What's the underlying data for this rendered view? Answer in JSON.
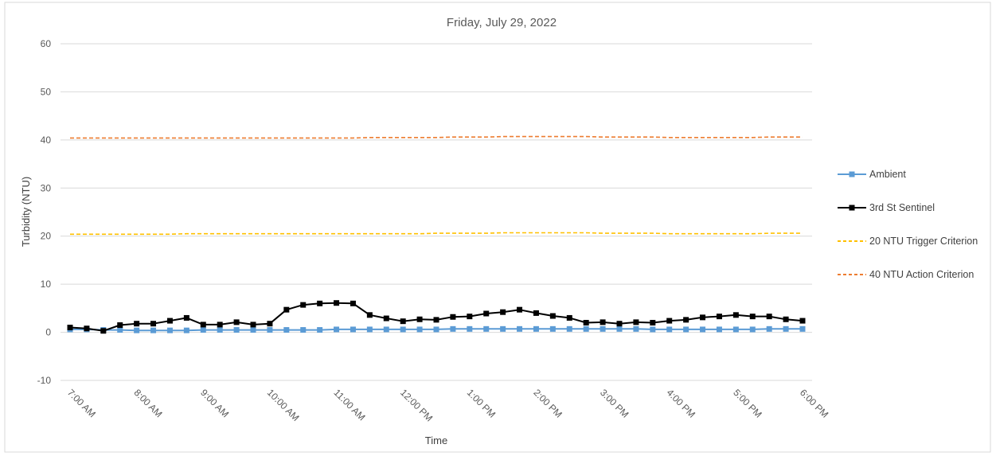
{
  "chart_data": {
    "type": "line",
    "title": "Friday, July 29, 2022",
    "xlabel": "Time",
    "ylabel": "Turbidity (NTU)",
    "ylim": [
      -10,
      60
    ],
    "yticks": [
      -10,
      0,
      10,
      20,
      30,
      40,
      50,
      60
    ],
    "grid": "horizontal",
    "legend_position": "right",
    "x_tick_labels": [
      "7:00 AM",
      "8:00 AM",
      "9:00 AM",
      "10:00 AM",
      "11:00 AM",
      "12:00 PM",
      "1:00 PM",
      "2:00 PM",
      "3:00 PM",
      "4:00 PM",
      "5:00 PM",
      "6:00 PM"
    ],
    "x_interval_minutes": 15,
    "x": [
      "7:00 AM",
      "7:15 AM",
      "7:30 AM",
      "7:45 AM",
      "8:00 AM",
      "8:15 AM",
      "8:30 AM",
      "8:45 AM",
      "9:00 AM",
      "9:15 AM",
      "9:30 AM",
      "9:45 AM",
      "10:00 AM",
      "10:15 AM",
      "10:30 AM",
      "10:45 AM",
      "11:00 AM",
      "11:15 AM",
      "11:30 AM",
      "11:45 AM",
      "12:00 PM",
      "12:15 PM",
      "12:30 PM",
      "12:45 PM",
      "1:00 PM",
      "1:15 PM",
      "1:30 PM",
      "1:45 PM",
      "2:00 PM",
      "2:15 PM",
      "2:30 PM",
      "2:45 PM",
      "3:00 PM",
      "3:15 PM",
      "3:30 PM",
      "3:45 PM",
      "4:00 PM",
      "4:15 PM",
      "4:30 PM",
      "4:45 PM",
      "5:00 PM",
      "5:15 PM",
      "5:30 PM",
      "5:45 PM",
      "6:00 PM"
    ],
    "series": [
      {
        "name": "Ambient",
        "color": "#5b9bd5",
        "marker": "square",
        "dashed": false,
        "values": [
          0.6,
          0.6,
          0.5,
          0.5,
          0.4,
          0.4,
          0.4,
          0.4,
          0.5,
          0.5,
          0.5,
          0.5,
          0.5,
          0.5,
          0.5,
          0.5,
          0.6,
          0.6,
          0.6,
          0.6,
          0.6,
          0.6,
          0.6,
          0.7,
          0.7,
          0.7,
          0.7,
          0.7,
          0.7,
          0.7,
          0.7,
          0.7,
          0.7,
          0.7,
          0.7,
          0.6,
          0.6,
          0.6,
          0.6,
          0.6,
          0.6,
          0.6,
          0.7,
          0.7,
          0.7
        ]
      },
      {
        "name": "3rd St Sentinel",
        "color": "#000000",
        "marker": "square",
        "dashed": false,
        "values": [
          1.0,
          0.8,
          0.3,
          1.5,
          1.8,
          1.8,
          2.4,
          3.0,
          1.6,
          1.6,
          2.1,
          1.6,
          1.8,
          4.7,
          5.7,
          6.0,
          6.1,
          6.0,
          3.6,
          2.9,
          2.3,
          2.7,
          2.6,
          3.2,
          3.3,
          3.9,
          4.2,
          4.7,
          4.0,
          3.4,
          3.0,
          2.0,
          2.1,
          1.8,
          2.1,
          2.0,
          2.4,
          2.6,
          3.1,
          3.3,
          3.6,
          3.3,
          3.3,
          2.7,
          2.4
        ]
      },
      {
        "name": "20 NTU Trigger Criterion",
        "color": "#ffc000",
        "marker": "none",
        "dashed": true,
        "values": [
          20.4,
          20.4,
          20.4,
          20.4,
          20.4,
          20.4,
          20.4,
          20.5,
          20.5,
          20.5,
          20.5,
          20.5,
          20.5,
          20.5,
          20.5,
          20.5,
          20.5,
          20.5,
          20.5,
          20.5,
          20.5,
          20.5,
          20.6,
          20.6,
          20.6,
          20.6,
          20.7,
          20.7,
          20.7,
          20.7,
          20.7,
          20.7,
          20.6,
          20.6,
          20.6,
          20.6,
          20.5,
          20.5,
          20.5,
          20.5,
          20.5,
          20.5,
          20.6,
          20.6,
          20.6
        ]
      },
      {
        "name": "40 NTU Action Criterion",
        "color": "#ed7d31",
        "marker": "none",
        "dashed": true,
        "values": [
          40.4,
          40.4,
          40.4,
          40.4,
          40.4,
          40.4,
          40.4,
          40.4,
          40.4,
          40.4,
          40.4,
          40.4,
          40.4,
          40.4,
          40.4,
          40.4,
          40.4,
          40.4,
          40.5,
          40.5,
          40.5,
          40.5,
          40.5,
          40.6,
          40.6,
          40.6,
          40.7,
          40.7,
          40.7,
          40.7,
          40.7,
          40.7,
          40.6,
          40.6,
          40.6,
          40.6,
          40.5,
          40.5,
          40.5,
          40.5,
          40.5,
          40.5,
          40.6,
          40.6,
          40.6
        ]
      }
    ]
  }
}
